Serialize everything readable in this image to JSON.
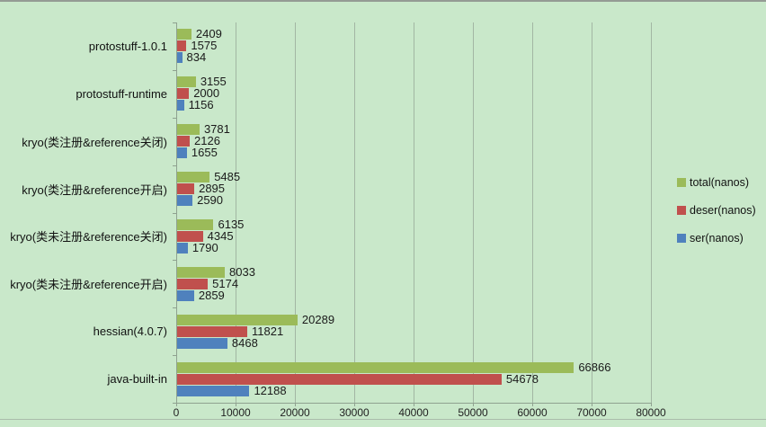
{
  "chart_data": {
    "type": "bar",
    "orientation": "horizontal",
    "title": "",
    "xlabel": "",
    "ylabel": "",
    "categories": [
      "protostuff-1.0.1",
      "protostuff-runtime",
      "kryo(类注册&reference关闭)",
      "kryo(类注册&reference开启)",
      "kryo(类未注册&reference关闭)",
      "kryo(类未注册&reference开启)",
      "hessian(4.0.7)",
      "java-built-in"
    ],
    "series": [
      {
        "name": "total(nanos)",
        "color": "#9bbb59",
        "values": [
          2409,
          3155,
          3781,
          5485,
          6135,
          8033,
          20289,
          66866
        ]
      },
      {
        "name": "deser(nanos)",
        "color": "#c0504d",
        "values": [
          1575,
          2000,
          2126,
          2895,
          4345,
          5174,
          11821,
          54678
        ]
      },
      {
        "name": "ser(nanos)",
        "color": "#4f81bd",
        "values": [
          834,
          1156,
          1655,
          2590,
          1790,
          2859,
          8468,
          12188
        ]
      }
    ],
    "x_ticks": [
      0,
      10000,
      20000,
      30000,
      40000,
      50000,
      60000,
      70000,
      80000
    ],
    "xlim": [
      0,
      80000
    ],
    "grid": true,
    "data_labels": true,
    "legend_position": "right",
    "background_color": "#c9e8ca"
  },
  "colors": {
    "background": "#c9e8ca",
    "gridline": "#a2b6a3",
    "axis": "#8fa290",
    "text": "#1a1a1a"
  }
}
